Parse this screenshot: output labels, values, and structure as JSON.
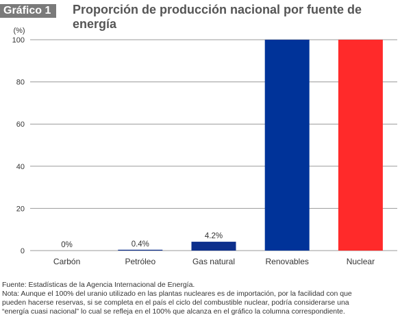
{
  "header": {
    "badge": "Gráfico 1",
    "title": "Proporción de producción nacional por fuente de energía"
  },
  "chart_data": {
    "type": "bar",
    "title": "Proporción de producción nacional por fuente de energía",
    "ylabel": "(%)",
    "xlabel": "",
    "ylim": [
      0,
      100
    ],
    "yticks": [
      0,
      20,
      40,
      60,
      80,
      100
    ],
    "grid": true,
    "categories": [
      "Carbón",
      "Petróleo",
      "Gas natural",
      "Renovables",
      "Nuclear"
    ],
    "values": [
      0,
      0.4,
      4.2,
      100,
      100
    ],
    "data_labels": [
      "0%",
      "0.4%",
      "4.2%",
      "",
      ""
    ],
    "colors": [
      "#0d2f8c",
      "#0d2f8c",
      "#0d2f8c",
      "#003399",
      "#ff2a2a"
    ],
    "gridline_color": "#999999"
  },
  "footnotes": {
    "source": "Fuente: Estadísticas de la Agencia Internacional de Energía.",
    "note_lines": [
      "Nota: Aunque el 100% del uranio utilizado en las plantas nucleares es de importación, por la facilidad con que",
      "pueden hacerse reservas, si se completa en el país el ciclo del combustible nuclear, podría considerarse una",
      "“energía cuasi nacional” lo cual se refleja en el 100% que alcanza en el gráfico la columna correspondiente."
    ]
  }
}
